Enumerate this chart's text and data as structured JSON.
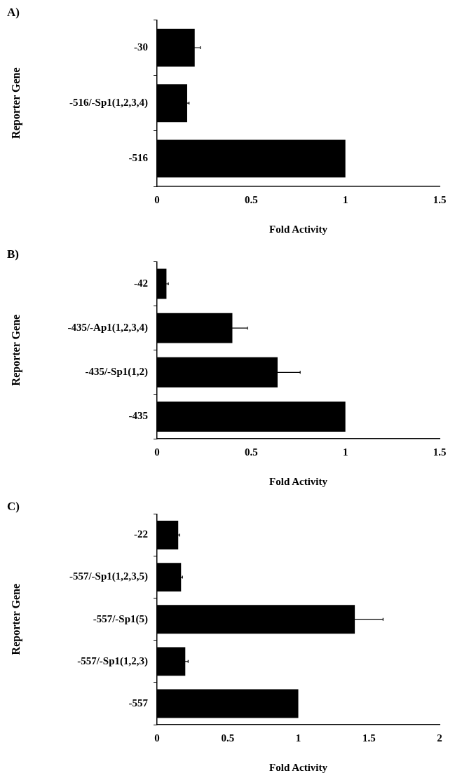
{
  "chart_data": [
    {
      "type": "bar",
      "orientation": "horizontal",
      "title": "A)",
      "xlabel": "Fold Activity",
      "ylabel": "Reporter Gene",
      "categories": [
        "-30",
        "-516/-Sp1(1,2,3,4)",
        "-516"
      ],
      "values": [
        0.2,
        0.16,
        1.0
      ],
      "errors": [
        0.03,
        0.01,
        null
      ],
      "color": "#000000",
      "xlim": [
        0,
        1.5
      ],
      "xticks": [
        0,
        0.5,
        1,
        1.5
      ],
      "grid": false,
      "legend": false
    },
    {
      "type": "bar",
      "orientation": "horizontal",
      "title": "B)",
      "xlabel": "Fold Activity",
      "ylabel": "Reporter Gene",
      "categories": [
        "-42",
        "-435/-Ap1(1,2,3,4)",
        "-435/-Sp1(1,2)",
        "-435"
      ],
      "values": [
        0.05,
        0.4,
        0.64,
        1.0
      ],
      "errors": [
        0.01,
        0.08,
        0.12,
        null
      ],
      "color": "#000000",
      "xlim": [
        0,
        1.5
      ],
      "xticks": [
        0,
        0.5,
        1,
        1.5
      ],
      "grid": false,
      "legend": false
    },
    {
      "type": "bar",
      "orientation": "horizontal",
      "title": "C)",
      "xlabel": "Fold Activity",
      "ylabel": "Reporter Gene",
      "categories": [
        "-22",
        "-557/-Sp1(1,2,3,5)",
        "-557/-Sp1(5)",
        "-557/-Sp1(1,2,3)",
        "-557"
      ],
      "values": [
        0.15,
        0.17,
        1.4,
        0.2,
        1.0
      ],
      "errors": [
        0.01,
        0.01,
        0.2,
        0.02,
        null
      ],
      "color": "#000000",
      "xlim": [
        0,
        2
      ],
      "xticks": [
        0,
        0.5,
        1,
        1.5,
        2
      ],
      "grid": false,
      "legend": false
    }
  ]
}
